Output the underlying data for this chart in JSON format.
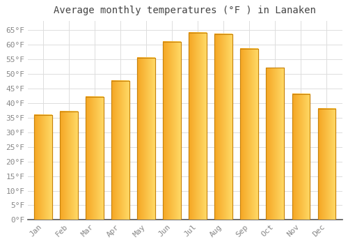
{
  "title": "Average monthly temperatures (°F ) in Lanaken",
  "months": [
    "Jan",
    "Feb",
    "Mar",
    "Apr",
    "May",
    "Jun",
    "Jul",
    "Aug",
    "Sep",
    "Oct",
    "Nov",
    "Dec"
  ],
  "values": [
    36,
    37,
    42,
    47.5,
    55.5,
    61,
    64,
    63.5,
    58.5,
    52,
    43,
    38
  ],
  "bar_color_left": "#F5A623",
  "bar_color_right": "#FFD966",
  "bar_edge_color": "#C8820A",
  "ylim": [
    0,
    68
  ],
  "yticks": [
    0,
    5,
    10,
    15,
    20,
    25,
    30,
    35,
    40,
    45,
    50,
    55,
    60,
    65
  ],
  "ytick_labels": [
    "0°F",
    "5°F",
    "10°F",
    "15°F",
    "20°F",
    "25°F",
    "30°F",
    "35°F",
    "40°F",
    "45°F",
    "50°F",
    "55°F",
    "60°F",
    "65°F"
  ],
  "background_color": "#FFFFFF",
  "grid_color": "#DDDDDD",
  "title_fontsize": 10,
  "tick_fontsize": 8,
  "font_family": "monospace"
}
